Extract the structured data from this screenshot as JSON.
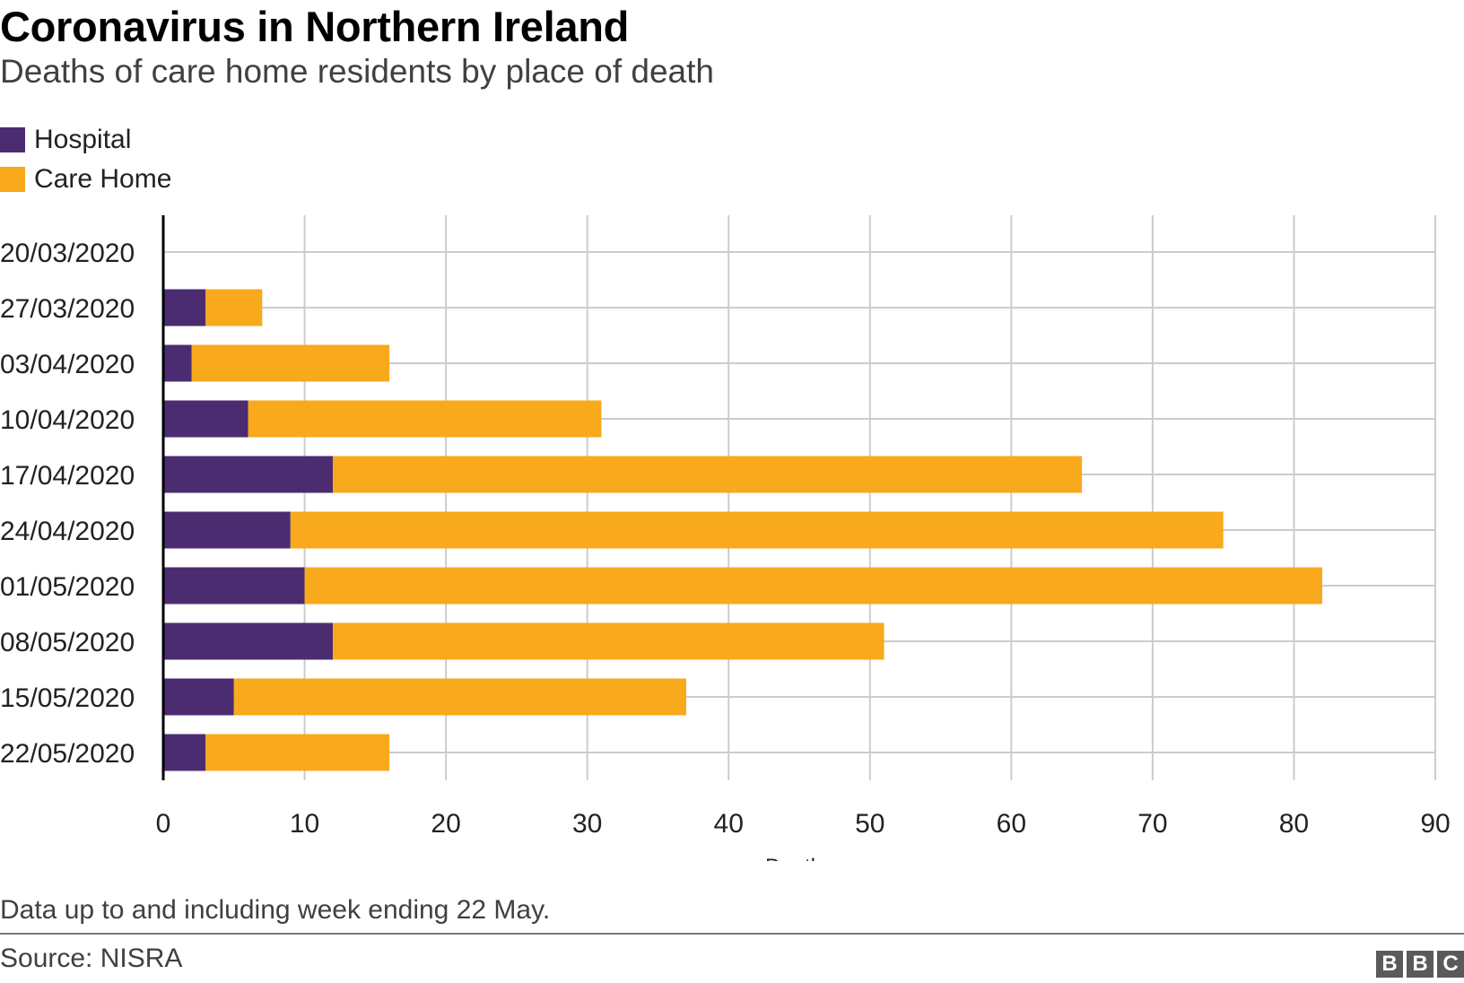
{
  "colors": {
    "hospital": "#4b2c71",
    "care_home": "#f8a91c",
    "grid": "#cccccc",
    "axis": "#000000"
  },
  "chart_data": {
    "type": "bar",
    "orientation": "horizontal",
    "stacked": true,
    "title": "Coronavirus in Northern Ireland",
    "subtitle": "Deaths of care home residents by place of death",
    "categories": [
      "20/03/2020",
      "27/03/2020",
      "03/04/2020",
      "10/04/2020",
      "17/04/2020",
      "24/04/2020",
      "01/05/2020",
      "08/05/2020",
      "15/05/2020",
      "22/05/2020"
    ],
    "series": [
      {
        "name": "Hospital",
        "color": "#4b2c71",
        "values": [
          0,
          3,
          2,
          6,
          12,
          9,
          10,
          12,
          5,
          3
        ]
      },
      {
        "name": "Care Home",
        "color": "#f8a91c",
        "values": [
          0,
          4,
          14,
          25,
          53,
          66,
          72,
          39,
          32,
          13
        ]
      }
    ],
    "xlabel": "Deaths",
    "ylabel": "",
    "xlim": [
      0,
      90
    ],
    "xticks": [
      0,
      10,
      20,
      30,
      40,
      50,
      60,
      70,
      80,
      90
    ],
    "grid": true,
    "legend_position": "top-left"
  },
  "footer": {
    "note": "Data up to and including week ending 22 May.",
    "source": "Source: NISRA",
    "logo_letters": [
      "B",
      "B",
      "C"
    ]
  }
}
